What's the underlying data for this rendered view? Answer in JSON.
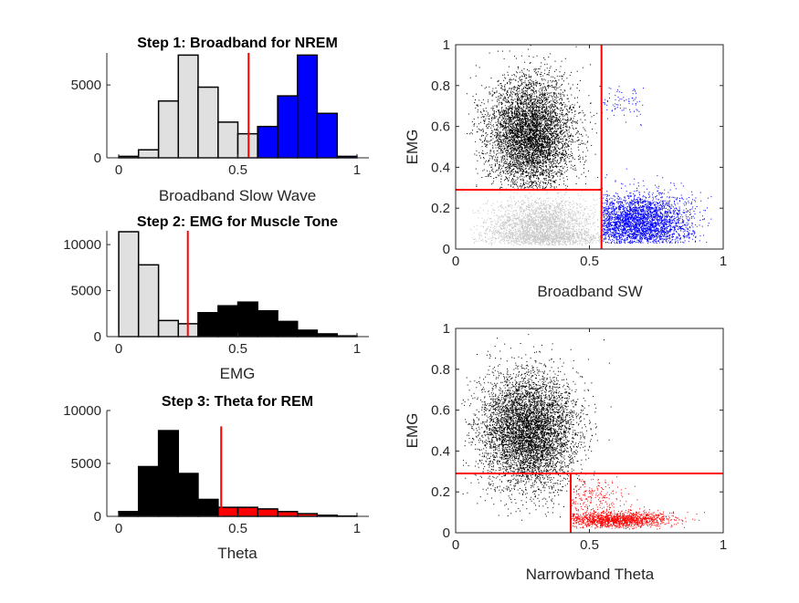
{
  "colors": {
    "light": "#e0e0e0",
    "nrem": "#0000ff",
    "wake": "#000000",
    "rem": "#ff0000",
    "threshold": "#ff0000",
    "axis": "#262626",
    "scatter_light": "#c8c8c8"
  },
  "chart_data": [
    {
      "id": "hist_broadband",
      "type": "bar",
      "title": "Step 1: Broadband for NREM",
      "xlabel": "Broadband Slow Wave",
      "ylabel": "",
      "xlim": [
        -0.05,
        1.05
      ],
      "ylim": [
        0,
        7200
      ],
      "xticks": [
        0,
        0.5,
        1
      ],
      "xtick_labels": [
        "0",
        "0.5",
        "1"
      ],
      "yticks": [
        0,
        5000
      ],
      "ytick_labels": [
        "0",
        "5000"
      ],
      "bin_edges": [
        0,
        0.083,
        0.167,
        0.25,
        0.333,
        0.417,
        0.5,
        0.583,
        0.667,
        0.75,
        0.833,
        0.917,
        1.0
      ],
      "series": [
        {
          "values": [
            100,
            550,
            3900,
            7050,
            4850,
            2450,
            1650,
            0,
            0,
            0,
            0,
            0
          ],
          "color_key": "light",
          "edge": "#000000"
        },
        {
          "values": [
            0,
            0,
            0,
            0,
            0,
            0,
            0,
            2150,
            4250,
            7050,
            3050,
            100
          ],
          "color_key": "nrem",
          "edge": "#000000"
        }
      ],
      "threshold": 0.545
    },
    {
      "id": "hist_emg",
      "type": "bar",
      "title": "Step 2: EMG for Muscle Tone",
      "xlabel": "EMG",
      "ylabel": "",
      "xlim": [
        -0.05,
        1.05
      ],
      "ylim": [
        0,
        11500
      ],
      "xticks": [
        0,
        0.5,
        1
      ],
      "xtick_labels": [
        "0",
        "0.5",
        "1"
      ],
      "yticks": [
        0,
        5000,
        10000
      ],
      "ytick_labels": [
        "0",
        "5000",
        "10000"
      ],
      "bin_edges": [
        0,
        0.083,
        0.167,
        0.25,
        0.333,
        0.417,
        0.5,
        0.583,
        0.667,
        0.75,
        0.833,
        0.917,
        1.0
      ],
      "series": [
        {
          "values": [
            11400,
            7800,
            1750,
            1400,
            0,
            0,
            0,
            0,
            0,
            0,
            0,
            0
          ],
          "color_key": "light",
          "edge": "#000000"
        },
        {
          "values": [
            0,
            0,
            0,
            0,
            2600,
            3350,
            3750,
            2800,
            1650,
            700,
            300,
            80
          ],
          "color_key": "wake",
          "edge": "#000000"
        }
      ],
      "threshold": 0.29
    },
    {
      "id": "hist_theta",
      "type": "bar",
      "title": "Step 3: Theta for REM",
      "xlabel": "Theta",
      "ylabel": "",
      "xlim": [
        -0.05,
        1.05
      ],
      "ylim": [
        0,
        10000
      ],
      "xticks": [
        0,
        0.5,
        1
      ],
      "xtick_labels": [
        "0",
        "0.5",
        "1"
      ],
      "yticks": [
        0,
        5000,
        10000
      ],
      "ytick_labels": [
        "0",
        "5000",
        "10000"
      ],
      "bin_edges": [
        0,
        0.083,
        0.167,
        0.25,
        0.333,
        0.417,
        0.5,
        0.583,
        0.667,
        0.75,
        0.833,
        0.917,
        1.0
      ],
      "series": [
        {
          "values": [
            450,
            4700,
            8100,
            4050,
            1600,
            0,
            0,
            0,
            0,
            0,
            0,
            0
          ],
          "color_key": "wake",
          "edge": "#000000"
        },
        {
          "values": [
            0,
            0,
            0,
            0,
            0,
            850,
            850,
            700,
            450,
            250,
            100,
            30
          ],
          "color_key": "rem",
          "edge": "#000000"
        }
      ],
      "threshold": 0.43,
      "threshold_top": 8500
    },
    {
      "id": "scatter_sw",
      "type": "scatter",
      "xlabel": "Broadband SW",
      "ylabel": "EMG",
      "xlim": [
        0,
        1
      ],
      "ylim": [
        0,
        1
      ],
      "xticks": [
        0,
        0.5,
        1
      ],
      "xtick_labels": [
        "0",
        "0.5",
        "1"
      ],
      "yticks": [
        0,
        0.2,
        0.4,
        0.6,
        0.8,
        1
      ],
      "ytick_labels": [
        "0",
        "0.2",
        "0.4",
        "0.6",
        "0.8",
        "1"
      ],
      "clusters": [
        {
          "color_key": "light",
          "count": 2600,
          "mean": [
            0.32,
            0.11
          ],
          "sd": [
            0.1,
            0.07
          ],
          "xrange": [
            0.05,
            0.545
          ],
          "yrange": [
            0.02,
            0.29
          ]
        },
        {
          "color_key": "light",
          "count": 500,
          "mean": [
            0.36,
            0.055
          ],
          "sd": [
            0.12,
            0.015
          ],
          "xrange": [
            0.06,
            0.545
          ],
          "yrange": [
            0.03,
            0.09
          ]
        },
        {
          "color_key": "nrem",
          "count": 3000,
          "mean": [
            0.68,
            0.13
          ],
          "sd": [
            0.1,
            0.07
          ],
          "xrange": [
            0.545,
            0.96
          ],
          "yrange": [
            0.03,
            0.4
          ]
        },
        {
          "color_key": "nrem",
          "count": 80,
          "mean": [
            0.62,
            0.72
          ],
          "sd": [
            0.06,
            0.05
          ],
          "xrange": [
            0.545,
            0.7
          ],
          "yrange": [
            0.6,
            0.8
          ]
        },
        {
          "color_key": "wake",
          "count": 5200,
          "mean": [
            0.28,
            0.56
          ],
          "sd": [
            0.08,
            0.14
          ],
          "xrange": [
            0.04,
            0.545
          ],
          "yrange": [
            0.29,
            1.0
          ]
        }
      ],
      "threshold_x": 0.545,
      "threshold_y": 0.29
    },
    {
      "id": "scatter_theta",
      "type": "scatter",
      "xlabel": "Narrowband Theta",
      "ylabel": "EMG",
      "xlim": [
        0,
        1
      ],
      "ylim": [
        0,
        1
      ],
      "xticks": [
        0,
        0.5,
        1
      ],
      "xtick_labels": [
        "0",
        "0.5",
        "1"
      ],
      "yticks": [
        0,
        0.2,
        0.4,
        0.6,
        0.8,
        1
      ],
      "ytick_labels": [
        "0",
        "0.2",
        "0.4",
        "0.6",
        "0.8",
        "1"
      ],
      "clusters": [
        {
          "color_key": "wake",
          "count": 5600,
          "mean": [
            0.27,
            0.5
          ],
          "sd": [
            0.09,
            0.14
          ],
          "xrange": [
            0.02,
            0.65
          ],
          "yrange": [
            0.05,
            1.0
          ]
        },
        {
          "color_key": "rem",
          "count": 1400,
          "mean": [
            0.6,
            0.065
          ],
          "sd": [
            0.1,
            0.02
          ],
          "xrange": [
            0.43,
            0.99
          ],
          "yrange": [
            0.02,
            0.15
          ]
        },
        {
          "color_key": "rem",
          "count": 200,
          "mean": [
            0.5,
            0.17
          ],
          "sd": [
            0.06,
            0.05
          ],
          "xrange": [
            0.43,
            0.7
          ],
          "yrange": [
            0.1,
            0.29
          ]
        }
      ],
      "threshold_x": 0.43,
      "threshold_y": 0.29
    }
  ]
}
